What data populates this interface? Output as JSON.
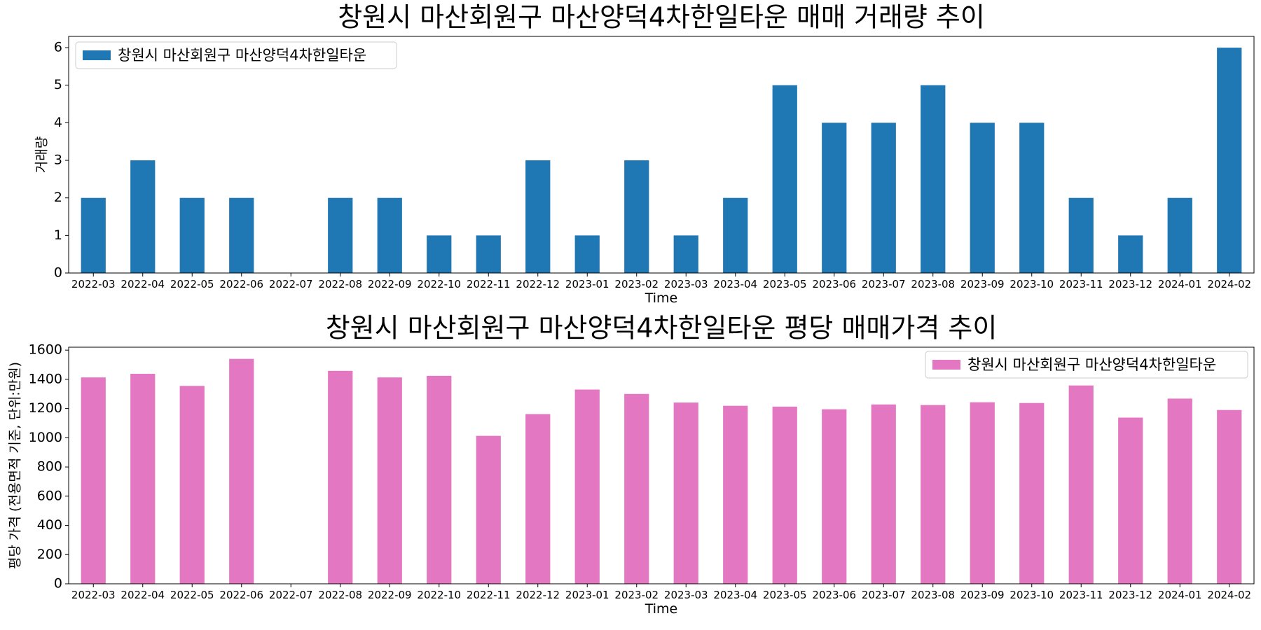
{
  "chart_data": [
    {
      "type": "bar",
      "title": "창원시 마산회원구 마산양덕4차한일타운 매매 거래량 추이",
      "xlabel": "Time",
      "ylabel": "거래량",
      "ylim": [
        0,
        6.3
      ],
      "yticks": [
        "0",
        "1",
        "2",
        "3",
        "4",
        "5",
        "6"
      ],
      "legend_position": "top-left",
      "categories": [
        "2022-03",
        "2022-04",
        "2022-05",
        "2022-06",
        "2022-07",
        "2022-08",
        "2022-09",
        "2022-10",
        "2022-11",
        "2022-12",
        "2023-01",
        "2023-02",
        "2023-03",
        "2023-04",
        "2023-05",
        "2023-06",
        "2023-07",
        "2023-08",
        "2023-09",
        "2023-10",
        "2023-11",
        "2023-12",
        "2024-01",
        "2024-02"
      ],
      "series": [
        {
          "name": "창원시 마산회원구 마산양덕4차한일타운",
          "color": "#1f77b4",
          "values": [
            2,
            3,
            2,
            2,
            0,
            2,
            2,
            1,
            1,
            3,
            1,
            3,
            1,
            2,
            5,
            4,
            4,
            5,
            4,
            4,
            2,
            1,
            2,
            6
          ]
        }
      ]
    },
    {
      "type": "bar",
      "title": "창원시 마산회원구 마산양덕4차한일타운 평당 매매가격 추이",
      "xlabel": "Time",
      "ylabel": "평당 가격 (전용면적 기준, 단위:만원)",
      "ylim": [
        0,
        1620
      ],
      "yticks": [
        "0",
        "200",
        "400",
        "600",
        "800",
        "1000",
        "1200",
        "1400",
        "1600"
      ],
      "legend_position": "top-right",
      "categories": [
        "2022-03",
        "2022-04",
        "2022-05",
        "2022-06",
        "2022-07",
        "2022-08",
        "2022-09",
        "2022-10",
        "2022-11",
        "2022-12",
        "2023-01",
        "2023-02",
        "2023-03",
        "2023-04",
        "2023-05",
        "2023-06",
        "2023-07",
        "2023-08",
        "2023-09",
        "2023-10",
        "2023-11",
        "2023-12",
        "2024-01",
        "2024-02"
      ],
      "series": [
        {
          "name": "창원시 마산회원구 마산양덕4차한일타운",
          "color": "#e377c2",
          "values": [
            1413,
            1438,
            1355,
            1540,
            null,
            1458,
            1413,
            1424,
            1013,
            1162,
            1330,
            1300,
            1241,
            1219,
            1213,
            1195,
            1228,
            1224,
            1243,
            1238,
            1358,
            1138,
            1268,
            1190
          ]
        }
      ]
    }
  ]
}
